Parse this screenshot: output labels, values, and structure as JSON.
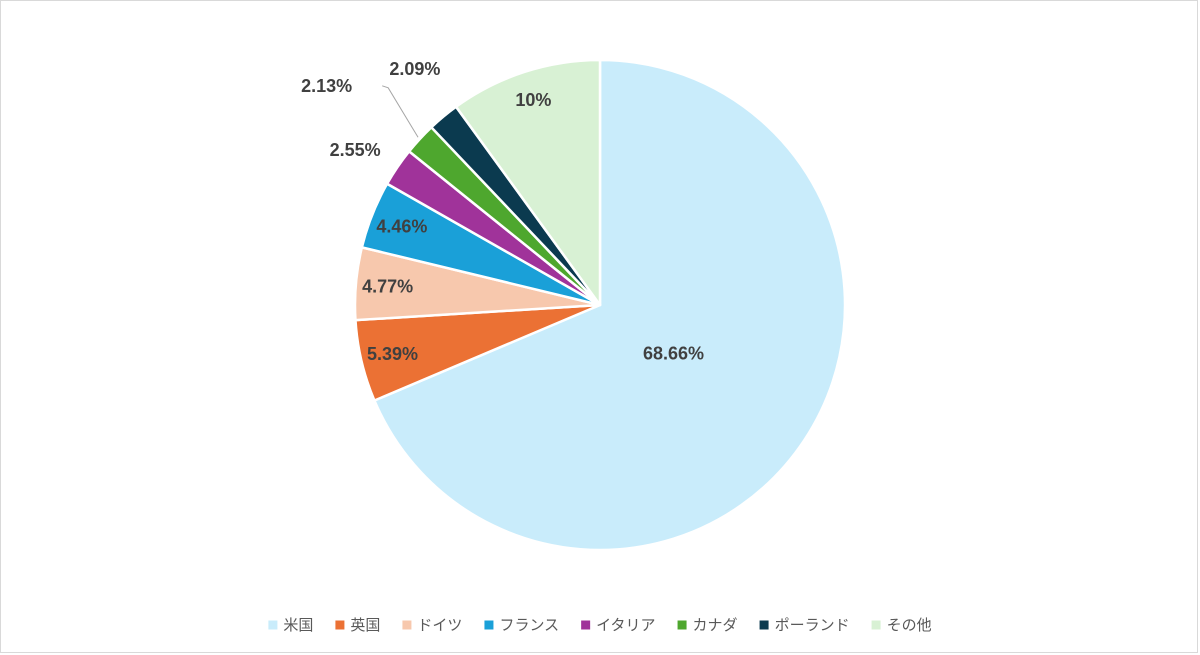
{
  "chart_data": {
    "type": "pie",
    "title": "",
    "legend_position": "bottom",
    "start_angle_deg": 0,
    "direction": "clockwise",
    "slices": [
      {
        "name": "米国",
        "value": 68.66,
        "label": "68.66%",
        "color": "#c9ecfb"
      },
      {
        "name": "英国",
        "value": 5.39,
        "label": "5.39%",
        "color": "#eb7134"
      },
      {
        "name": "ドイツ",
        "value": 4.77,
        "label": "4.77%",
        "color": "#f7c8ad"
      },
      {
        "name": "フランス",
        "value": 4.46,
        "label": "4.46%",
        "color": "#1aa0d8"
      },
      {
        "name": "イタリア",
        "value": 2.55,
        "label": "2.55%",
        "color": "#a0339a"
      },
      {
        "name": "カナダ",
        "value": 2.13,
        "label": "2.13%",
        "color": "#4ea72e"
      },
      {
        "name": "ポーランド",
        "value": 2.09,
        "label": "2.09%",
        "color": "#0b3a4f"
      },
      {
        "name": "その他",
        "value": 10,
        "label": "10%",
        "color": "#d8f1d4"
      }
    ]
  }
}
